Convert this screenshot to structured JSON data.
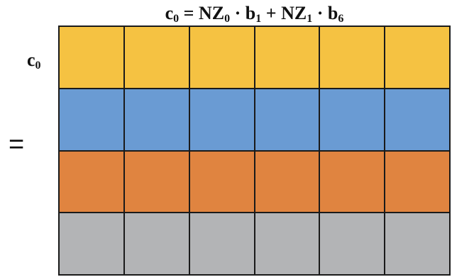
{
  "equation": {
    "lhs": "c",
    "lhs_sub": "0",
    "eq": " = ",
    "term1": "NZ",
    "term1_sub": "0",
    "dot1": " · ",
    "var1": "b",
    "var1_sub": "1",
    "plus": " + ",
    "term2": "NZ",
    "term2_sub": "1",
    "dot2": " · ",
    "var2": "b",
    "var2_sub": "6"
  },
  "row_label": {
    "text": "c",
    "sub": "0"
  },
  "equals_sign": "=",
  "grid": {
    "columns": 6,
    "rows": [
      {
        "color": "#f5c242"
      },
      {
        "color": "#6a9bd3"
      },
      {
        "color": "#e08440"
      },
      {
        "color": "#b3b4b6"
      }
    ]
  }
}
